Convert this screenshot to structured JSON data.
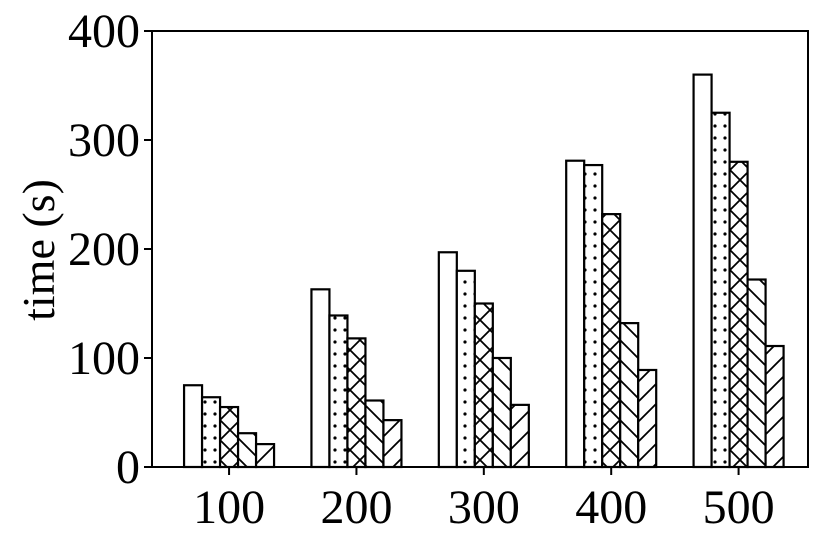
{
  "chart_data": {
    "type": "bar",
    "title": "",
    "xlabel": "",
    "ylabel": "time (s)",
    "categories": [
      "100",
      "200",
      "300",
      "400",
      "500"
    ],
    "ylim": [
      0,
      400
    ],
    "yticks": [
      0,
      100,
      200,
      300,
      400
    ],
    "grid": false,
    "legend": "none",
    "series": [
      {
        "pattern": "none",
        "values": [
          75,
          163,
          197,
          281,
          360
        ]
      },
      {
        "pattern": "dots",
        "values": [
          64,
          139,
          180,
          277,
          325
        ]
      },
      {
        "pattern": "cross",
        "values": [
          55,
          118,
          150,
          232,
          280
        ]
      },
      {
        "pattern": "back-diagonal",
        "values": [
          31,
          61,
          100,
          132,
          172
        ]
      },
      {
        "pattern": "forward-diagonal",
        "values": [
          21,
          43,
          57,
          89,
          111
        ]
      }
    ]
  }
}
